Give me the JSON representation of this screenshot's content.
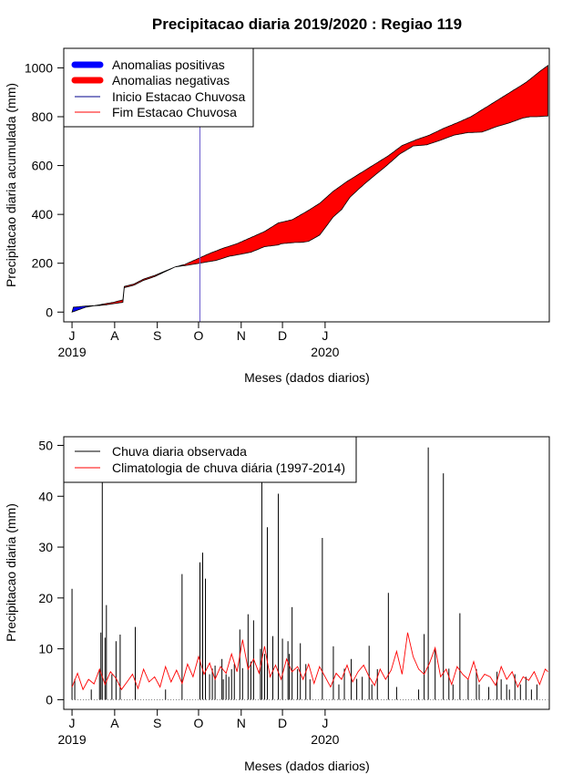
{
  "chart_data": [
    {
      "type": "area",
      "title": "Precipitacao diaria 2019/2020 : Regiao 119",
      "xlabel": "Meses (dados diarios)",
      "ylabel": "Precipitacao diaria acumulada (mm)",
      "x_tick_labels": [
        "J",
        "A",
        "S",
        "O",
        "N",
        "D",
        "J"
      ],
      "x_year_labels": [
        "2019",
        "2020"
      ],
      "y_ticks": [
        0,
        200,
        400,
        600,
        800,
        1000
      ],
      "ylim": [
        -40,
        1080
      ],
      "x_range_days": [
        -6,
        347
      ],
      "legend": {
        "placement": "top-left",
        "entries": [
          "Anomalias positivas",
          "Anomalias negativas",
          "Inicio Estacao Chuvosa",
          "Fim Estacao Chuvosa"
        ],
        "colors": [
          "#0000ff",
          "#ff0000",
          "#00008b",
          "#ff0000"
        ]
      },
      "onset_day": 93,
      "onset_color": "#6a5acd",
      "observed_cumulative": {
        "x": [
          0,
          1,
          5,
          10,
          20,
          25,
          37,
          38,
          45,
          52,
          60,
          75,
          81,
          82,
          105,
          115,
          116,
          130,
          140,
          150,
          152,
          162,
          168,
          172,
          180,
          190,
          196,
          202,
          212,
          222,
          228,
          238,
          248,
          258,
          266,
          278,
          288,
          298,
          308,
          318,
          328,
          333,
          338,
          346
        ],
        "y": [
          0,
          20,
          22,
          25,
          27,
          30,
          40,
          100,
          110,
          130,
          145,
          185,
          190,
          190,
          212,
          230,
          230,
          245,
          268,
          275,
          280,
          285,
          286,
          290,
          315,
          390,
          420,
          470,
          522,
          569,
          596,
          646,
          680,
          685,
          700,
          725,
          735,
          737,
          758,
          775,
          795,
          800,
          800,
          803
        ]
      },
      "climatology_cumulative": {
        "x": [
          0,
          5,
          10,
          20,
          30,
          37,
          38,
          45,
          52,
          60,
          75,
          82,
          90,
          100,
          110,
          120,
          130,
          140,
          150,
          160,
          170,
          180,
          190,
          200,
          210,
          220,
          230,
          240,
          250,
          260,
          270,
          280,
          290,
          300,
          310,
          320,
          330,
          340,
          346
        ],
        "y": [
          0,
          10,
          20,
          30,
          40,
          50,
          105,
          115,
          135,
          150,
          185,
          195,
          215,
          240,
          262,
          280,
          305,
          330,
          365,
          378,
          410,
          445,
          495,
          535,
          570,
          605,
          640,
          682,
          705,
          725,
          752,
          775,
          800,
          835,
          870,
          905,
          940,
          985,
          1010
        ]
      },
      "anomaly_colors": {
        "positive": "#0000ff",
        "negative": "#ff0000"
      }
    },
    {
      "type": "bar",
      "xlabel": "Meses (dados diarios)",
      "ylabel": "Precipitacao diaria (mm)",
      "x_tick_labels": [
        "J",
        "A",
        "S",
        "O",
        "N",
        "D",
        "J"
      ],
      "x_year_labels": [
        "2019",
        "2020"
      ],
      "y_ticks": [
        0,
        10,
        20,
        30,
        40,
        50
      ],
      "ylim": [
        -1.9,
        51.7
      ],
      "x_range_days": [
        -6,
        347
      ],
      "legend": {
        "placement": "top-left",
        "entries": [
          "Chuva diaria observada",
          "Climatologia de chuva diária (1997-2014)"
        ],
        "colors": [
          "#000000",
          "#ff0000"
        ]
      },
      "observed_daily": {
        "days": [
          0,
          2,
          14,
          20,
          21,
          22,
          24,
          25,
          29,
          32,
          35,
          46,
          68,
          80,
          93,
          95,
          97,
          100,
          102,
          104,
          109,
          110,
          112,
          114,
          116,
          118,
          122,
          124,
          128,
          130,
          132,
          137,
          138,
          140,
          142,
          146,
          150,
          153,
          157,
          158,
          160,
          164,
          166,
          170,
          173,
          182,
          190,
          194,
          198,
          203,
          207,
          211,
          216,
          218,
          222,
          230,
          236,
          252,
          256,
          259,
          264,
          270,
          274,
          277,
          282,
          288,
          294,
          296,
          303,
          309,
          312,
          316,
          318,
          322,
          326,
          330,
          334,
          338
        ],
        "values": [
          21.8,
          4.0,
          2.0,
          6.0,
          13.2,
          43.0,
          12.2,
          18.6,
          5.0,
          11.5,
          12.8,
          14.3,
          2.0,
          24.7,
          27.0,
          28.9,
          23.8,
          5.0,
          6.1,
          6.7,
          8.0,
          4.0,
          5.0,
          4.5,
          6.0,
          7.0,
          13.8,
          6.2,
          16.8,
          7.5,
          15.6,
          10.0,
          43.0,
          9.0,
          33.9,
          12.5,
          40.5,
          12.0,
          11.5,
          9.0,
          18.2,
          6.0,
          11.1,
          7.0,
          4.0,
          31.8,
          10.5,
          3.0,
          6.1,
          8.0,
          4.1,
          4.5,
          10.6,
          3.0,
          6.0,
          21.0,
          2.5,
          2.0,
          12.9,
          49.6,
          10.0,
          44.5,
          6.1,
          3.0,
          17.0,
          4.0,
          6.0,
          3.0,
          2.5,
          5.5,
          4.0,
          3.0,
          2.0,
          5.0,
          3.0,
          4.5,
          2.0,
          3.0
        ]
      },
      "climatology_daily": {
        "x": [
          0,
          4,
          8,
          12,
          16,
          20,
          24,
          28,
          32,
          36,
          40,
          44,
          48,
          52,
          56,
          60,
          64,
          68,
          72,
          76,
          80,
          84,
          88,
          92,
          96,
          100,
          104,
          108,
          112,
          116,
          120,
          124,
          128,
          132,
          136,
          140,
          144,
          148,
          152,
          156,
          160,
          164,
          168,
          172,
          176,
          180,
          184,
          188,
          192,
          196,
          200,
          204,
          208,
          212,
          216,
          220,
          224,
          228,
          232,
          236,
          240,
          244,
          248,
          252,
          256,
          260,
          264,
          268,
          272,
          276,
          280,
          284,
          288,
          292,
          296,
          300,
          304,
          308,
          312,
          316,
          320,
          324,
          328,
          332,
          336,
          340,
          344,
          346
        ],
        "y": [
          2.5,
          5.2,
          2.0,
          4.0,
          3.1,
          6.0,
          3.0,
          5.5,
          4.2,
          2.0,
          3.5,
          5.0,
          2.2,
          6.0,
          3.5,
          4.5,
          2.5,
          6.5,
          3.5,
          5.8,
          3.2,
          7.0,
          4.5,
          8.5,
          5.0,
          7.2,
          4.0,
          6.5,
          5.2,
          9.0,
          5.5,
          11.8,
          6.0,
          8.0,
          5.2,
          10.5,
          4.5,
          6.8,
          4.0,
          8.0,
          5.5,
          6.5,
          4.0,
          7.0,
          3.2,
          6.5,
          4.5,
          2.5,
          5.2,
          4.0,
          6.8,
          3.5,
          5.5,
          6.8,
          4.5,
          2.8,
          6.0,
          4.0,
          5.8,
          9.5,
          5.0,
          13.2,
          8.5,
          6.0,
          5.0,
          7.2,
          10.2,
          4.5,
          6.0,
          3.0,
          6.5,
          5.0,
          4.0,
          7.5,
          3.5,
          5.0,
          4.5,
          2.8,
          6.5,
          4.0,
          5.5,
          2.5,
          4.5,
          3.8,
          5.5,
          3.0,
          6.0,
          5.5
        ]
      }
    }
  ]
}
